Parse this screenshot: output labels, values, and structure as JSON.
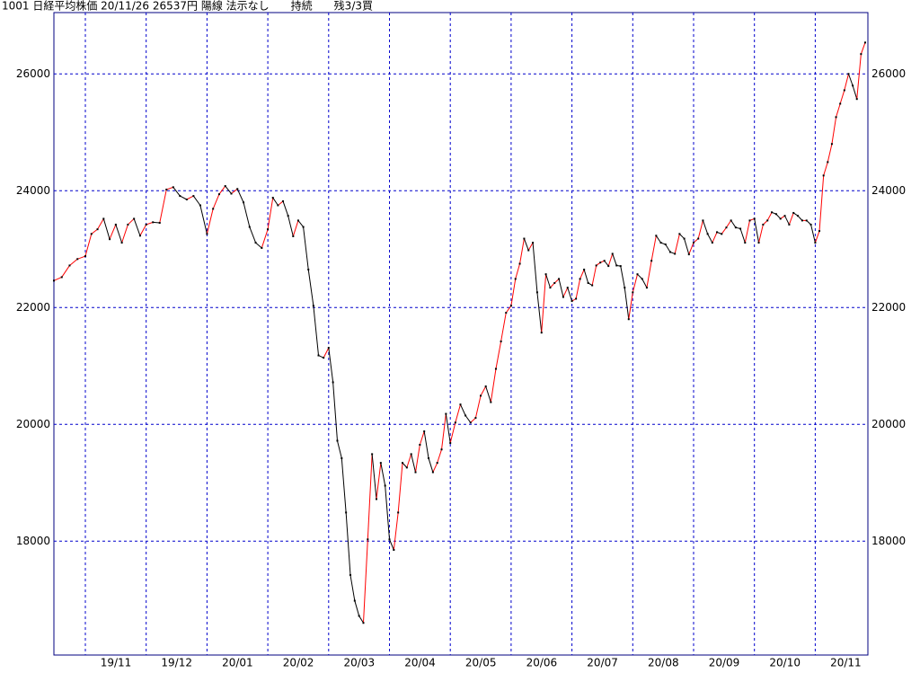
{
  "chart_data": {
    "type": "line",
    "title": "1001 日経平均株価 20/11/26 26537円 陽線 法示なし　　持続　　残3/3買",
    "categories": [
      null,
      null,
      null,
      null,
      "19/11",
      null,
      null,
      null,
      null,
      null,
      null,
      null,
      null,
      null,
      "19/12",
      null,
      null,
      null,
      null,
      null,
      null,
      null,
      null,
      "20/01",
      null,
      null,
      null,
      null,
      null,
      null,
      null,
      null,
      null,
      "20/02",
      null,
      null,
      null,
      null,
      null,
      null,
      null,
      null,
      null,
      null,
      null,
      "20/03",
      null,
      null,
      null,
      null,
      null,
      null,
      null,
      null,
      null,
      null,
      null,
      null,
      null,
      "20/04",
      null,
      null,
      null,
      null,
      null,
      null,
      null,
      null,
      null,
      null,
      null,
      null,
      null,
      "20/05",
      null,
      null,
      null,
      null,
      null,
      null,
      null,
      null,
      null,
      null,
      null,
      "20/06",
      null,
      null,
      null,
      null,
      null,
      null,
      null,
      null,
      null,
      null,
      null,
      null,
      null,
      "20/07",
      null,
      null,
      null,
      null,
      null,
      null,
      null,
      null,
      null,
      null,
      null,
      null,
      null,
      null,
      "20/08",
      null,
      null,
      null,
      null,
      null,
      null,
      null,
      null,
      null,
      null,
      null,
      null,
      "20/09",
      null,
      null,
      null,
      null,
      null,
      null,
      null,
      null,
      null,
      null,
      null,
      null,
      "20/10",
      null,
      null,
      null,
      null,
      null,
      null,
      null,
      null,
      null,
      null,
      null,
      null,
      null,
      "20/11",
      null,
      null,
      null,
      null,
      null,
      null,
      null,
      null,
      null,
      null,
      null,
      null
    ],
    "values": [
      22460,
      22520,
      22720,
      22830,
      22880,
      23260,
      23340,
      23520,
      23170,
      23420,
      23110,
      23420,
      23520,
      23230,
      23420,
      23460,
      23450,
      24020,
      24060,
      23910,
      23850,
      23910,
      23750,
      23260,
      23690,
      23940,
      24080,
      23950,
      24030,
      23800,
      23380,
      23110,
      23020,
      23340,
      23880,
      23750,
      23820,
      23570,
      23220,
      23490,
      23380,
      22650,
      22030,
      21180,
      21140,
      21310,
      20720,
      19720,
      19420,
      18490,
      17420,
      16980,
      16720,
      16600,
      18030,
      19490,
      18720,
      19340,
      18950,
      18030,
      17850,
      18490,
      19340,
      19260,
      19490,
      19180,
      19650,
      19880,
      19420,
      19180,
      19340,
      19570,
      20180,
      19680,
      20030,
      20340,
      20150,
      20030,
      20110,
      20490,
      20650,
      20380,
      20950,
      21420,
      21910,
      22030,
      22490,
      22750,
      23180,
      22980,
      23110,
      22260,
      21570,
      22570,
      22340,
      22420,
      22490,
      22180,
      22340,
      22110,
      22150,
      22490,
      22650,
      22420,
      22380,
      22720,
      22770,
      22800,
      22710,
      22920,
      22720,
      22710,
      22340,
      21800,
      22260,
      22570,
      22490,
      22340,
      22800,
      23230,
      23110,
      23080,
      22950,
      22920,
      23260,
      23180,
      22910,
      23110,
      23180,
      23490,
      23260,
      23110,
      23290,
      23260,
      23370,
      23490,
      23370,
      23350,
      23110,
      23490,
      23520,
      23110,
      23420,
      23490,
      23630,
      23600,
      23520,
      23570,
      23420,
      23620,
      23570,
      23490,
      23490,
      23420,
      23110,
      23310,
      24260,
      24490,
      24800,
      25260,
      25490,
      25720,
      26000,
      25800,
      25570,
      26340,
      26537
    ],
    "ylim": [
      16050,
      27050
    ],
    "yticks": [
      18000,
      20000,
      22000,
      24000,
      26000
    ],
    "grid": true,
    "up_color": "#ff0000",
    "down_color": "#000000",
    "grid_color": "#0000cc"
  }
}
